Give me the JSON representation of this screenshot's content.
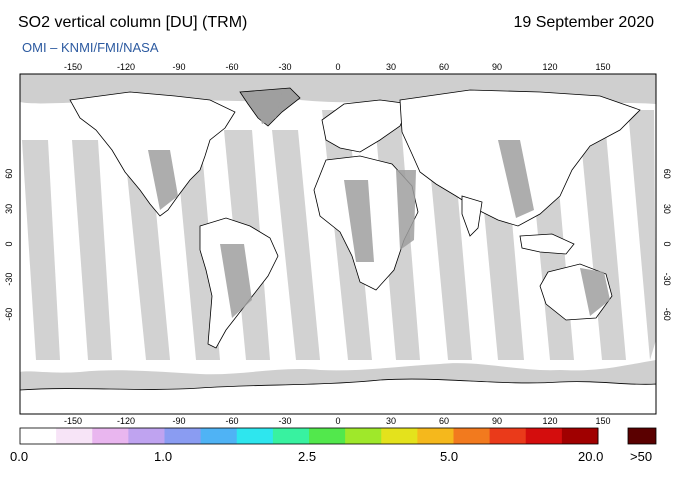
{
  "header": {
    "title": "SO2 vertical column [DU] (TRM)",
    "date": "19 September 2020",
    "credit": "OMI  –  KNMI/FMI/NASA"
  },
  "map": {
    "lon_ticks": [
      "-150",
      "-120",
      "-90",
      "-60",
      "-30",
      "0",
      "30",
      "60",
      "90",
      "120",
      "150"
    ],
    "lat_ticks": [
      "60",
      "30",
      "0",
      "-30",
      "-60"
    ],
    "land_color": "#9f9f9f",
    "swath_color": "#d2d2d2",
    "nodata_color": "#c8c8c8",
    "background": "#ffffff"
  },
  "colorbar": {
    "labels": [
      "0.0",
      "1.0",
      "2.5",
      "5.0",
      "20.0"
    ],
    "overflow_label": ">50",
    "overflow_color": "#5a0000",
    "colors": [
      "#ffffff",
      "#f7e4f7",
      "#e9b6ef",
      "#bfa3f0",
      "#8a9cf2",
      "#4fb3f5",
      "#2ee6ee",
      "#38f2a0",
      "#52e84c",
      "#9fe82a",
      "#e4e21c",
      "#f5b81c",
      "#f27a1e",
      "#ea3a1a",
      "#d40d0d",
      "#a00000"
    ]
  }
}
